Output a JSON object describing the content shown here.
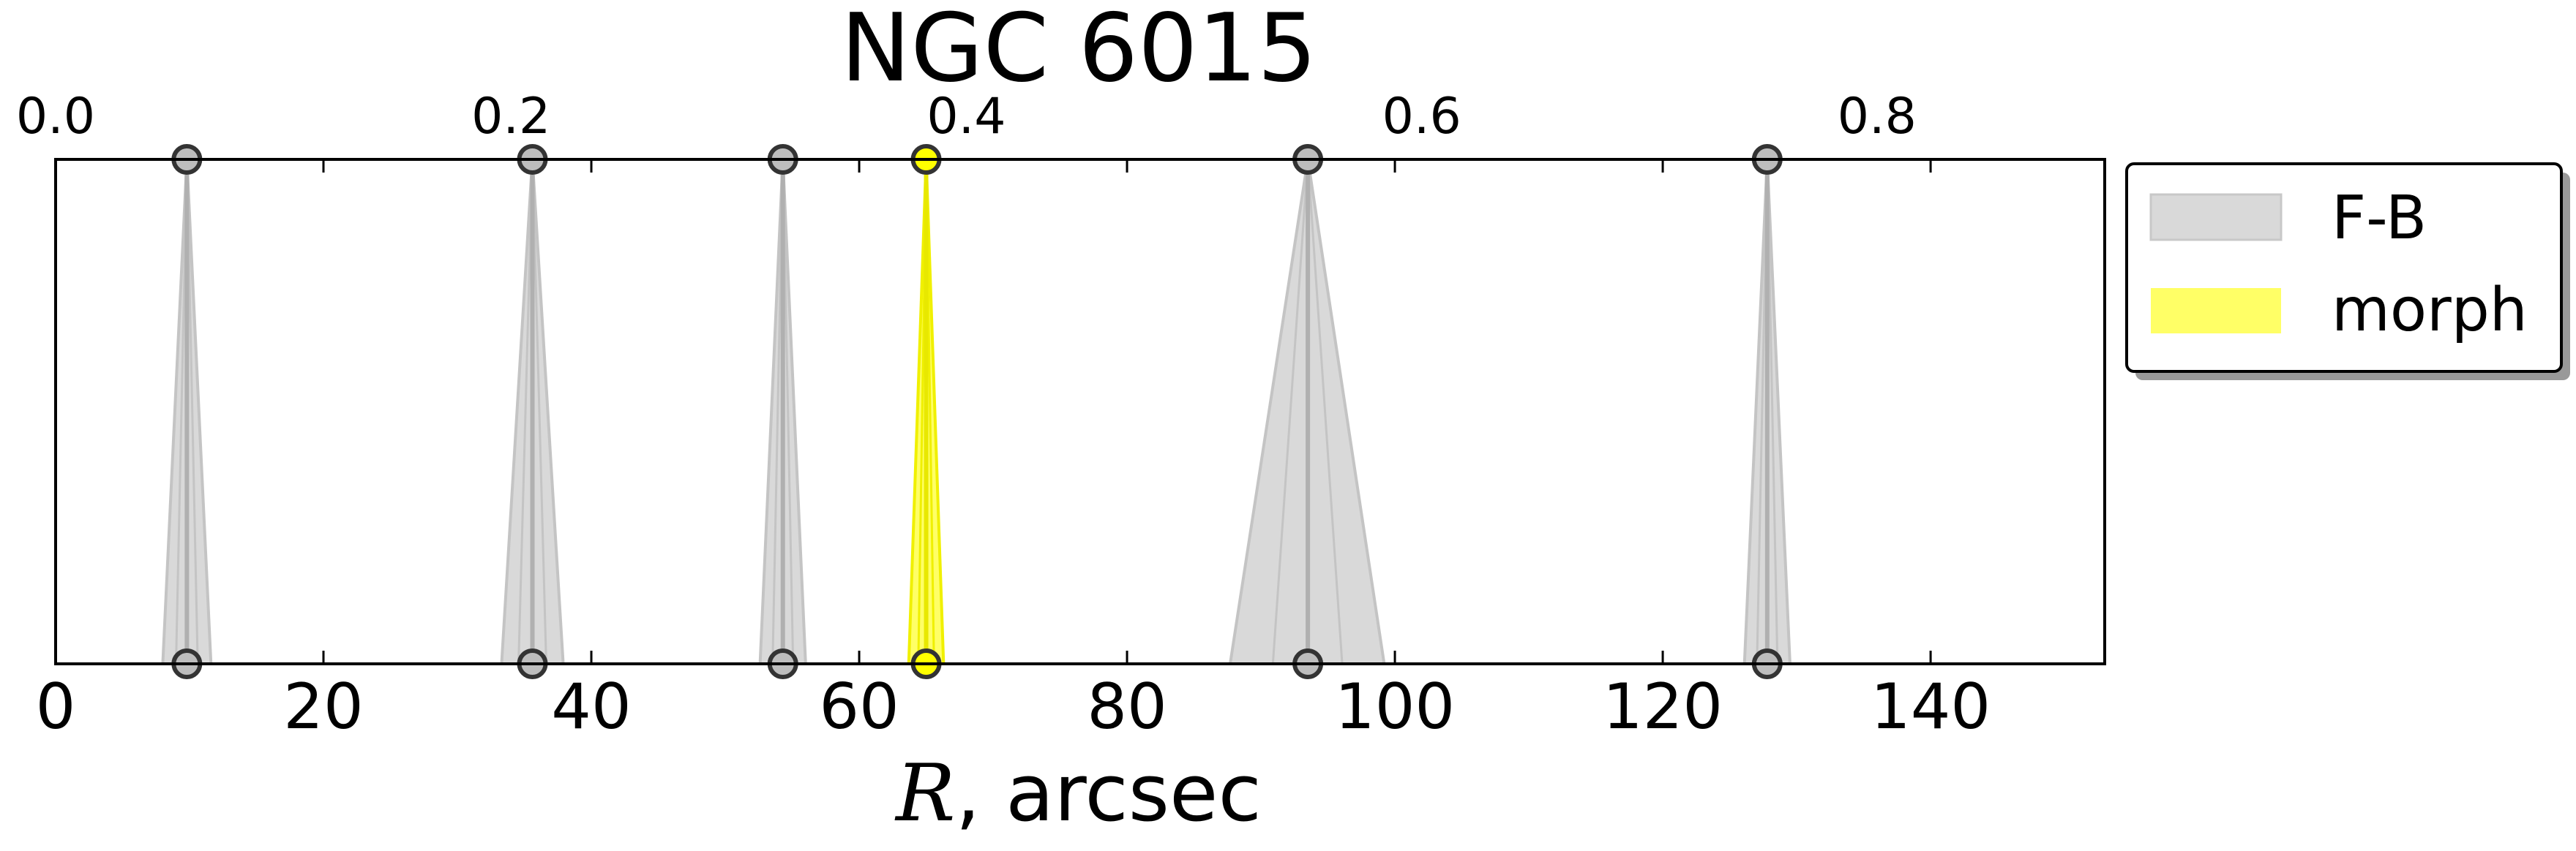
{
  "chart_data": {
    "type": "area",
    "title": "NGC 6015",
    "xlabel_symbol": "R",
    "xlabel_rest": ", arcsec",
    "xlim": [
      0,
      153
    ],
    "xticks": [
      0,
      20,
      40,
      60,
      80,
      100,
      120,
      140
    ],
    "xtick_labels": [
      "0",
      "20",
      "40",
      "60",
      "80",
      "100",
      "120",
      "140"
    ],
    "top_axis_max": 0.9,
    "top_ticks": [
      0.0,
      0.2,
      0.4,
      0.6,
      0.8
    ],
    "top_tick_labels": [
      "0.0",
      "0.2",
      "0.4",
      "0.6",
      "0.8"
    ],
    "grid": false,
    "legend_position": "outside-right-top",
    "series": [
      {
        "name": "F-B",
        "color": "#d9d9d9",
        "points": [
          {
            "r": 9.8,
            "r_min": 8.0,
            "r_max": 11.6
          },
          {
            "r": 35.6,
            "r_min": 33.3,
            "r_max": 37.9
          },
          {
            "r": 54.3,
            "r_min": 52.6,
            "r_max": 56.0
          },
          {
            "r": 93.5,
            "r_min": 87.7,
            "r_max": 99.2
          },
          {
            "r": 127.8,
            "r_min": 126.1,
            "r_max": 129.5
          }
        ]
      },
      {
        "name": "morph",
        "color": "#ffff66",
        "points": [
          {
            "r": 65.0,
            "r_min": 63.7,
            "r_max": 66.3
          }
        ]
      }
    ]
  }
}
